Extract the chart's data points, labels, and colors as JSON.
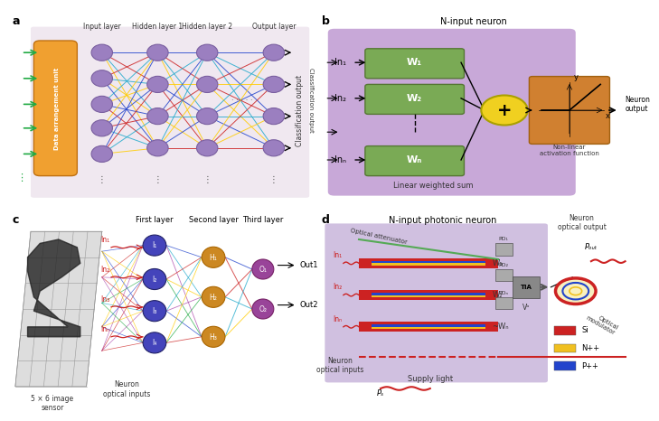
{
  "panel_a": {
    "title": "a",
    "bg_color": "#f0e8f0",
    "orange_box_color": "#f0a030",
    "orange_box_text": "Data arrangement unit",
    "layer_labels": [
      "Input layer",
      "Hidden layer 1",
      "Hidden layer 2",
      "Output layer"
    ],
    "node_color": "#9b7fc0",
    "node_edge": "#7a5fa0",
    "arrow_colors": [
      "#2244cc",
      "#cc2222",
      "#22aacc",
      "#ffcc00"
    ],
    "green_arrow_color": "#22aa44"
  },
  "panel_b": {
    "title": "b",
    "panel_title": "N-input neuron",
    "bg_color": "#c8a8d8",
    "weight_box_color": "#7aaa55",
    "weight_box_edge": "#557733",
    "sum_color": "#f0d020",
    "activation_color": "#d08030",
    "labels_in": [
      "In₁",
      "In₂",
      "Inₙ"
    ],
    "labels_w": [
      "W₁",
      "W₂",
      "Wₙ"
    ],
    "bottom_label": "Linear weighted sum",
    "output_label": "Neuron\noutput",
    "class_label": "Classification output"
  },
  "panel_c": {
    "title": "c",
    "layer_labels": [
      "First layer",
      "Second layer",
      "Third layer"
    ],
    "out_labels": [
      "Out1",
      "Out2"
    ],
    "input_labels": [
      "I₁",
      "I₂",
      "I₃",
      "I₄"
    ],
    "h_labels": [
      "H₁",
      "H₂",
      "H₃"
    ],
    "o_labels": [
      "O₁",
      "O₂"
    ],
    "neuron_label": "Neuron\noptical inputs",
    "sensor_label": "5 × 6 image\nsensor",
    "layer1_color": "#4444bb",
    "layer2_color": "#cc8822",
    "layer3_color": "#994499",
    "connection_colors": [
      "#2244cc",
      "#cc2222",
      "#22aacc",
      "#ffcc00",
      "#aa44aa",
      "#22aa44"
    ]
  },
  "panel_d": {
    "title": "d",
    "panel_title": "N-input photonic neuron",
    "bg_color": "#d0c0e0",
    "waveguide_si": "#cc2222",
    "waveguide_npp": "#f0c020",
    "waveguide_ppp": "#2244cc",
    "legend_si": "Si",
    "legend_npp": "N++",
    "legend_ppp": "P++",
    "input_labels": [
      "In₁",
      "In₂",
      "Inₙ"
    ],
    "neuron_label": "Neuron\noptical inputs",
    "pd_labels": [
      "PD₁",
      "PD₂",
      "PDₙ"
    ]
  },
  "figure_bg": "#ffffff",
  "font_size": 7,
  "label_font_size": 8
}
